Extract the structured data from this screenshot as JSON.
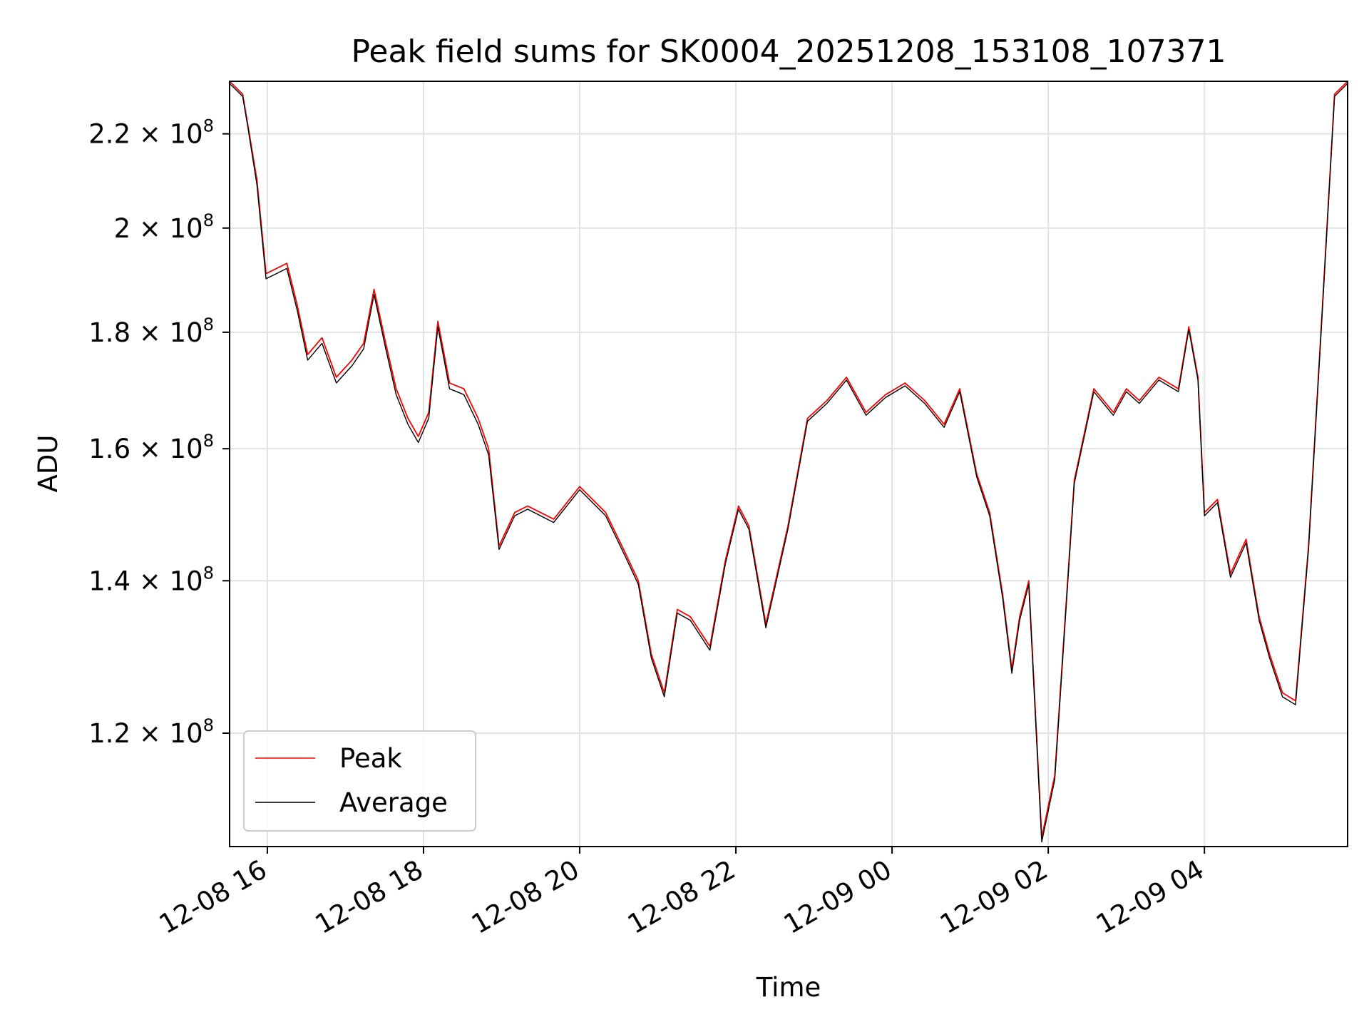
{
  "chart_data": {
    "type": "line",
    "title": "Peak field sums for SK0004_20251208_153108_107371",
    "xlabel": "Time",
    "ylabel": "ADU",
    "y_scale": "log",
    "xlim": [
      "2025-12-08 15:31",
      "2025-12-09 05:50"
    ],
    "ylim": [
      107000000,
      232000000
    ],
    "grid": true,
    "legend_position": "lower-left",
    "x_ticks": [
      {
        "value": "2025-12-08 16:00",
        "label": "12-08 16"
      },
      {
        "value": "2025-12-08 18:00",
        "label": "12-08 18"
      },
      {
        "value": "2025-12-08 20:00",
        "label": "12-08 20"
      },
      {
        "value": "2025-12-08 22:00",
        "label": "12-08 22"
      },
      {
        "value": "2025-12-09 00:00",
        "label": "12-09 00"
      },
      {
        "value": "2025-12-09 02:00",
        "label": "12-09 02"
      },
      {
        "value": "2025-12-09 04:00",
        "label": "12-09 04"
      }
    ],
    "y_ticks": [
      {
        "value": 120000000,
        "mantissa": "1.2",
        "exponent": "8"
      },
      {
        "value": 140000000,
        "mantissa": "1.4",
        "exponent": "8"
      },
      {
        "value": 160000000,
        "mantissa": "1.6",
        "exponent": "8"
      },
      {
        "value": 180000000,
        "mantissa": "1.8",
        "exponent": "8"
      },
      {
        "value": 200000000,
        "mantissa": "2",
        "exponent": "8"
      },
      {
        "value": 220000000,
        "mantissa": "2.2",
        "exponent": "8"
      }
    ],
    "x": [
      "2025-12-08 15:31",
      "2025-12-08 15:41",
      "2025-12-08 15:45",
      "2025-12-08 15:52",
      "2025-12-08 15:59",
      "2025-12-08 16:07",
      "2025-12-08 16:15",
      "2025-12-08 16:23",
      "2025-12-08 16:31",
      "2025-12-08 16:42",
      "2025-12-08 16:53",
      "2025-12-08 17:05",
      "2025-12-08 17:14",
      "2025-12-08 17:22",
      "2025-12-08 17:31",
      "2025-12-08 17:39",
      "2025-12-08 17:48",
      "2025-12-08 17:56",
      "2025-12-08 18:04",
      "2025-12-08 18:11",
      "2025-12-08 18:20",
      "2025-12-08 18:31",
      "2025-12-08 18:42",
      "2025-12-08 18:50",
      "2025-12-08 18:58",
      "2025-12-08 19:10",
      "2025-12-08 19:20",
      "2025-12-08 19:40",
      "2025-12-08 20:00",
      "2025-12-08 20:20",
      "2025-12-08 20:35",
      "2025-12-08 20:45",
      "2025-12-08 20:55",
      "2025-12-08 21:05",
      "2025-12-08 21:15",
      "2025-12-08 21:25",
      "2025-12-08 21:40",
      "2025-12-08 21:52",
      "2025-12-08 22:02",
      "2025-12-08 22:10",
      "2025-12-08 22:23",
      "2025-12-08 22:40",
      "2025-12-08 22:55",
      "2025-12-08 23:10",
      "2025-12-08 23:25",
      "2025-12-08 23:40",
      "2025-12-08 23:55",
      "2025-12-09 00:10",
      "2025-12-09 00:25",
      "2025-12-09 00:40",
      "2025-12-09 00:52",
      "2025-12-09 01:05",
      "2025-12-09 01:15",
      "2025-12-09 01:25",
      "2025-12-09 01:32",
      "2025-12-09 01:38",
      "2025-12-09 01:45",
      "2025-12-09 01:55",
      "2025-12-09 02:05",
      "2025-12-09 02:20",
      "2025-12-09 02:35",
      "2025-12-09 02:50",
      "2025-12-09 03:00",
      "2025-12-09 03:10",
      "2025-12-09 03:25",
      "2025-12-09 03:40",
      "2025-12-09 03:48",
      "2025-12-09 03:55",
      "2025-12-09 04:00",
      "2025-12-09 04:10",
      "2025-12-09 04:20",
      "2025-12-09 04:32",
      "2025-12-09 04:42",
      "2025-12-09 04:50",
      "2025-12-09 05:00",
      "2025-12-09 05:10",
      "2025-12-09 05:20",
      "2025-12-09 05:30",
      "2025-12-09 05:40",
      "2025-12-09 05:50"
    ],
    "series": [
      {
        "name": "Peak",
        "color": "#ff0000",
        "values": [
          232000000,
          229000000,
          222000000,
          210000000,
          191000000,
          192000000,
          193000000,
          185000000,
          176000000,
          179000000,
          172000000,
          175000000,
          178000000,
          188000000,
          178000000,
          170000000,
          165000000,
          162000000,
          166000000,
          182000000,
          171000000,
          170000000,
          165000000,
          160000000,
          145000000,
          150000000,
          151000000,
          149000000,
          154000000,
          150000000,
          144000000,
          140000000,
          130000000,
          125000000,
          136000000,
          135000000,
          131000000,
          143000000,
          151000000,
          148000000,
          134000000,
          148000000,
          165000000,
          168000000,
          172000000,
          166000000,
          169000000,
          171000000,
          168000000,
          164000000,
          170000000,
          156000000,
          150000000,
          138000000,
          128000000,
          135000000,
          140000000,
          108000000,
          115000000,
          155000000,
          170000000,
          166000000,
          170000000,
          168000000,
          172000000,
          170000000,
          181000000,
          172000000,
          150000000,
          152000000,
          141000000,
          146000000,
          135000000,
          130000000,
          125000000,
          124000000,
          145000000,
          182000000,
          229000000,
          232000000
        ]
      },
      {
        "name": "Average",
        "color": "#000000",
        "values": [
          231500000,
          228500000,
          221500000,
          209000000,
          190000000,
          191000000,
          192000000,
          184000000,
          175000000,
          178000000,
          171000000,
          174000000,
          177000000,
          187000000,
          177000000,
          169000000,
          164000000,
          161000000,
          165000000,
          181000000,
          170000000,
          169000000,
          164000000,
          159000000,
          144500000,
          149500000,
          150500000,
          148500000,
          153500000,
          149500000,
          143500000,
          139500000,
          129500000,
          124500000,
          135500000,
          134500000,
          130500000,
          142500000,
          150500000,
          147500000,
          133500000,
          147500000,
          164500000,
          167500000,
          171500000,
          165500000,
          168500000,
          170500000,
          167500000,
          163500000,
          169500000,
          155500000,
          149500000,
          137500000,
          127500000,
          134500000,
          139500000,
          107500000,
          114500000,
          154500000,
          169500000,
          165500000,
          169500000,
          167500000,
          171500000,
          169500000,
          180500000,
          171500000,
          149500000,
          151500000,
          140500000,
          145500000,
          134500000,
          129500000,
          124500000,
          123500000,
          144500000,
          181500000,
          228500000,
          231500000
        ]
      }
    ]
  }
}
